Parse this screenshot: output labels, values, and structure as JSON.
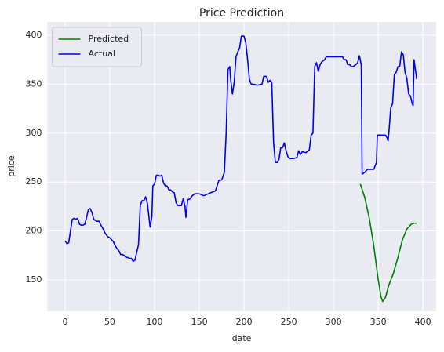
{
  "chart_data": {
    "type": "line",
    "title": "Price Prediction",
    "x_label": "date",
    "y_label": "price",
    "xlim": [
      -19.75,
      414.75
    ],
    "ylim": [
      118,
      413.6
    ],
    "xticks": [
      0,
      50,
      100,
      150,
      200,
      250,
      300,
      350,
      400
    ],
    "yticks": [
      150,
      200,
      250,
      300,
      350,
      400
    ],
    "grid": true,
    "legend": "upper left",
    "series": [
      {
        "name": "Predicted",
        "color": "#008000",
        "x": [
          330,
          335,
          340,
          345,
          350,
          353,
          355,
          358,
          362,
          367,
          372,
          377,
          382,
          387,
          390,
          393
        ],
        "values": [
          248,
          234,
          213,
          185,
          150,
          133,
          128,
          132,
          145,
          157,
          173,
          191,
          202,
          207,
          208,
          208
        ]
      },
      {
        "name": "Actual",
        "color": "#0000ff",
        "x": [
          0,
          2,
          4,
          6,
          8,
          10,
          12,
          14,
          16,
          18,
          20,
          22,
          24,
          26,
          28,
          30,
          32,
          35,
          38,
          40,
          42,
          44,
          46,
          48,
          50,
          52,
          54,
          56,
          58,
          60,
          62,
          64,
          66,
          68,
          70,
          72,
          74,
          76,
          78,
          80,
          82,
          84,
          86,
          88,
          90,
          92,
          94,
          95,
          97,
          98,
          100,
          102,
          104,
          106,
          108,
          110,
          112,
          114,
          116,
          118,
          120,
          122,
          124,
          126,
          128,
          130,
          132,
          134,
          135,
          137,
          140,
          142,
          145,
          150,
          155,
          160,
          165,
          168,
          172,
          175,
          178,
          180,
          182,
          184,
          185,
          187,
          189,
          191,
          193,
          195,
          197,
          200,
          202,
          204,
          206,
          208,
          210,
          215,
          220,
          222,
          225,
          227,
          229,
          231,
          233,
          235,
          237,
          239,
          241,
          243,
          245,
          247,
          249,
          251,
          255,
          259,
          261,
          263,
          265,
          269,
          273,
          275,
          277,
          279,
          281,
          283,
          285,
          287,
          290,
          292,
          300,
          310,
          312,
          314,
          316,
          318,
          320,
          322,
          325,
          327,
          329,
          331,
          332,
          335,
          338,
          342,
          345,
          348,
          349,
          352,
          358,
          360,
          361,
          362,
          364,
          366,
          368,
          370,
          372,
          374,
          376,
          378,
          380,
          382,
          384,
          386,
          388,
          389,
          390,
          392,
          393
        ],
        "values": [
          190,
          187,
          188,
          200,
          212,
          213,
          212,
          213,
          207,
          206,
          206,
          207,
          214,
          222,
          223,
          219,
          212,
          210,
          210,
          206,
          203,
          199,
          196,
          194,
          193,
          191,
          189,
          185,
          182,
          180,
          176,
          176,
          175,
          173,
          173,
          172,
          172,
          169,
          170,
          178,
          186,
          226,
          231,
          231,
          235,
          228,
          212,
          204,
          215,
          246,
          248,
          257,
          257,
          256,
          257,
          249,
          246,
          246,
          242,
          242,
          240,
          239,
          229,
          226,
          226,
          226,
          233,
          225,
          214,
          232,
          233,
          236,
          238,
          238,
          236,
          238,
          240,
          241,
          252,
          252,
          260,
          300,
          365,
          368,
          355,
          340,
          352,
          378,
          383,
          387,
          399,
          399,
          392,
          375,
          355,
          350,
          350,
          349,
          350,
          358,
          358,
          352,
          354,
          352,
          290,
          270,
          270,
          273,
          285,
          285,
          290,
          282,
          276,
          274,
          274,
          275,
          282,
          278,
          281,
          280,
          283,
          298,
          300,
          368,
          372,
          363,
          370,
          373,
          375,
          378,
          378,
          378,
          375,
          375,
          370,
          370,
          368,
          368,
          370,
          372,
          379,
          370,
          258,
          260,
          263,
          263,
          263,
          270,
          298,
          298,
          298,
          295,
          292,
          302,
          326,
          330,
          360,
          362,
          368,
          368,
          383,
          380,
          362,
          356,
          340,
          338,
          330,
          328,
          375,
          362,
          355
        ]
      }
    ]
  }
}
